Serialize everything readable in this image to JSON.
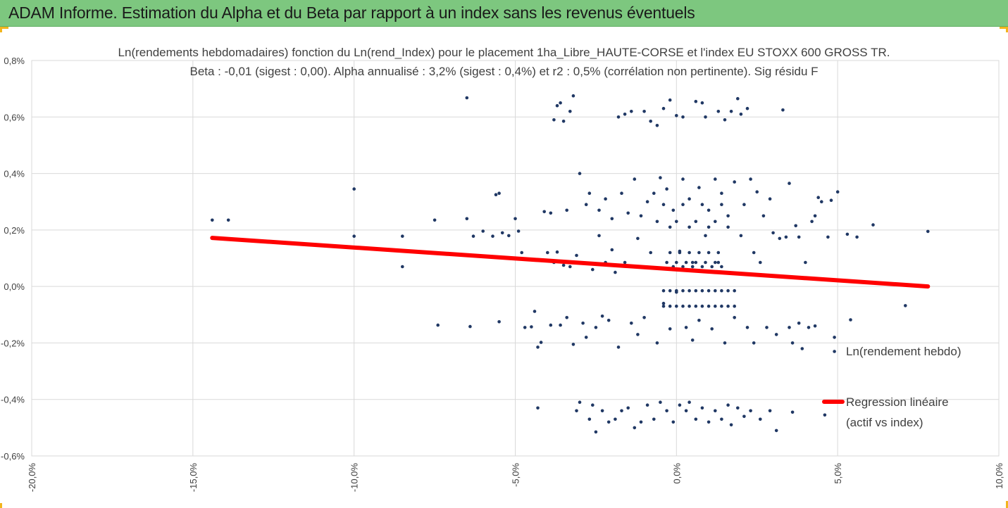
{
  "header": {
    "title": "ADAM Informe. Estimation du Alpha et du Beta par rapport à un index sans les revenus éventuels"
  },
  "colors": {
    "banner": "#7dc77f",
    "points": "#203864",
    "regression": "#ff0000",
    "grid": "#d9d9d9",
    "text": "#404040"
  },
  "chart_data": {
    "type": "scatter",
    "title_line1": "Ln(rendements hebdomadaires) fonction du Ln(rend_Index) pour le placement 1ha_Libre_HAUTE-CORSE et l'index EU STOXX 600 GROSS TR.",
    "title_line2": "Beta : -0,01 (sigest : 0,00). Alpha annualisé : 3,2% (sigest : 0,4%) et r2 : 0,5% (corrélation non pertinente). Sig résidu F",
    "xlabel": "",
    "ylabel": "",
    "xlim": [
      -0.2,
      0.1
    ],
    "ylim": [
      -0.006,
      0.008
    ],
    "x_ticks": [
      -0.2,
      -0.15,
      -0.1,
      -0.05,
      0.0,
      0.05,
      0.1
    ],
    "x_tick_labels": [
      "-20,0%",
      "-15,0%",
      "-10,0%",
      "-5,0%",
      "0,0%",
      "5,0%",
      "10,0%"
    ],
    "y_ticks": [
      -0.006,
      -0.004,
      -0.002,
      0.0,
      0.002,
      0.004,
      0.006,
      0.008
    ],
    "y_tick_labels": [
      "-0,6%",
      "-0,4%",
      "-0,2%",
      "0,0%",
      "0,2%",
      "0,4%",
      "0,6%",
      "0,8%"
    ],
    "grid": "horizontal and vertical",
    "legend_placement": "right",
    "series": [
      {
        "name": "Ln(rendement hebdo)",
        "kind": "scatter",
        "points": [
          [
            -0.144,
            0.00235
          ],
          [
            -0.139,
            0.00235
          ],
          [
            -0.1,
            0.00345
          ],
          [
            -0.1,
            0.00178
          ],
          [
            -0.085,
            0.00178
          ],
          [
            -0.085,
            0.0007
          ],
          [
            -0.075,
            0.00235
          ],
          [
            -0.074,
            -0.00137
          ],
          [
            -0.065,
            0.00668
          ],
          [
            -0.065,
            0.0024
          ],
          [
            -0.064,
            -0.00142
          ],
          [
            -0.063,
            0.00178
          ],
          [
            -0.06,
            0.00196
          ],
          [
            -0.057,
            0.00178
          ],
          [
            -0.056,
            0.00325
          ],
          [
            -0.055,
            0.0033
          ],
          [
            -0.055,
            -0.00125
          ],
          [
            -0.054,
            0.0019
          ],
          [
            -0.052,
            0.0018
          ],
          [
            -0.05,
            0.0024
          ],
          [
            -0.049,
            0.00196
          ],
          [
            -0.048,
            0.0012
          ],
          [
            -0.047,
            -0.00145
          ],
          [
            -0.045,
            -0.00143
          ],
          [
            -0.044,
            -0.00088
          ],
          [
            -0.043,
            -0.0043
          ],
          [
            -0.043,
            -0.00215
          ],
          [
            -0.042,
            -0.00198
          ],
          [
            -0.041,
            0.00265
          ],
          [
            -0.04,
            0.0012
          ],
          [
            -0.039,
            -0.00137
          ],
          [
            -0.039,
            0.0026
          ],
          [
            -0.038,
            0.0059
          ],
          [
            -0.038,
            0.00085
          ],
          [
            -0.037,
            0.0064
          ],
          [
            -0.037,
            0.00122
          ],
          [
            -0.036,
            0.0065
          ],
          [
            -0.036,
            -0.00137
          ],
          [
            -0.035,
            0.00585
          ],
          [
            -0.035,
            0.00075
          ],
          [
            -0.034,
            0.0027
          ],
          [
            -0.034,
            -0.0011
          ],
          [
            -0.033,
            0.0062
          ],
          [
            -0.033,
            0.0007
          ],
          [
            -0.032,
            0.00675
          ],
          [
            -0.032,
            -0.00205
          ],
          [
            -0.031,
            -0.0044
          ],
          [
            -0.031,
            0.0011
          ],
          [
            -0.03,
            0.004
          ],
          [
            -0.03,
            -0.0041
          ],
          [
            -0.029,
            -0.0013
          ],
          [
            -0.028,
            0.0029
          ],
          [
            -0.028,
            -0.0018
          ],
          [
            -0.027,
            -0.0047
          ],
          [
            -0.027,
            0.0033
          ],
          [
            -0.026,
            -0.0042
          ],
          [
            -0.026,
            0.0006
          ],
          [
            -0.025,
            -0.00515
          ],
          [
            -0.025,
            -0.00145
          ],
          [
            -0.024,
            0.0027
          ],
          [
            -0.024,
            0.0018
          ],
          [
            -0.023,
            -0.0044
          ],
          [
            -0.023,
            -0.00105
          ],
          [
            -0.022,
            0.0031
          ],
          [
            -0.022,
            0.00085
          ],
          [
            -0.021,
            -0.0012
          ],
          [
            -0.021,
            -0.0048
          ],
          [
            -0.02,
            0.0024
          ],
          [
            -0.02,
            0.0013
          ],
          [
            -0.019,
            -0.0047
          ],
          [
            -0.019,
            0.0005
          ],
          [
            -0.018,
            0.006
          ],
          [
            -0.018,
            -0.00215
          ],
          [
            -0.017,
            -0.0044
          ],
          [
            -0.017,
            0.0033
          ],
          [
            -0.016,
            0.0061
          ],
          [
            -0.016,
            0.00085
          ],
          [
            -0.015,
            -0.0043
          ],
          [
            -0.015,
            0.0026
          ],
          [
            -0.014,
            0.0062
          ],
          [
            -0.014,
            -0.0013
          ],
          [
            -0.013,
            -0.005
          ],
          [
            -0.013,
            0.0038
          ],
          [
            -0.012,
            0.0017
          ],
          [
            -0.012,
            -0.0017
          ],
          [
            -0.011,
            -0.0048
          ],
          [
            -0.011,
            0.0025
          ],
          [
            -0.01,
            0.0062
          ],
          [
            -0.01,
            -0.0011
          ],
          [
            -0.009,
            -0.0042
          ],
          [
            -0.009,
            0.003
          ],
          [
            -0.008,
            0.00585
          ],
          [
            -0.008,
            0.0012
          ],
          [
            -0.007,
            -0.0047
          ],
          [
            -0.007,
            0.0033
          ],
          [
            -0.006,
            0.0057
          ],
          [
            -0.006,
            -0.002
          ],
          [
            -0.005,
            -0.0041
          ],
          [
            -0.005,
            0.00385
          ],
          [
            -0.004,
            0.0063
          ],
          [
            -0.004,
            -0.0006
          ],
          [
            -0.003,
            -0.0044
          ],
          [
            -0.003,
            0.00345
          ],
          [
            -0.002,
            0.0066
          ],
          [
            -0.002,
            -0.0015
          ],
          [
            -0.001,
            -0.0048
          ],
          [
            -0.001,
            0.0027
          ],
          [
            0.0,
            0.00605
          ],
          [
            0.0,
            -0.0002
          ],
          [
            0.001,
            -0.0042
          ],
          [
            0.001,
            0.00125
          ],
          [
            0.002,
            0.006
          ],
          [
            0.002,
            0.0038
          ],
          [
            0.003,
            -0.0044
          ],
          [
            0.003,
            -0.00145
          ],
          [
            0.004,
            0.0031
          ],
          [
            0.004,
            -0.0041
          ],
          [
            0.005,
            0.00085
          ],
          [
            0.005,
            -0.0019
          ],
          [
            0.006,
            0.00655
          ],
          [
            0.006,
            -0.0047
          ],
          [
            0.007,
            0.0035
          ],
          [
            0.007,
            -0.0012
          ],
          [
            0.008,
            0.0065
          ],
          [
            0.008,
            -0.0043
          ],
          [
            0.009,
            0.006
          ],
          [
            0.009,
            0.0018
          ],
          [
            0.01,
            -0.0048
          ],
          [
            0.01,
            0.0027
          ],
          [
            0.011,
            -0.0015
          ],
          [
            0.012,
            0.0038
          ],
          [
            0.012,
            -0.0044
          ],
          [
            0.013,
            0.0062
          ],
          [
            0.013,
            0.00085
          ],
          [
            0.014,
            -0.0047
          ],
          [
            0.014,
            0.0033
          ],
          [
            0.015,
            0.0059
          ],
          [
            0.015,
            -0.002
          ],
          [
            0.016,
            -0.0042
          ],
          [
            0.016,
            0.0025
          ],
          [
            0.017,
            0.0062
          ],
          [
            0.017,
            -0.0049
          ],
          [
            0.018,
            0.0037
          ],
          [
            0.018,
            -0.0011
          ],
          [
            0.019,
            -0.0043
          ],
          [
            0.019,
            0.00665
          ],
          [
            0.02,
            0.0061
          ],
          [
            0.02,
            0.0018
          ],
          [
            0.021,
            -0.0046
          ],
          [
            0.021,
            0.0029
          ],
          [
            0.022,
            0.0063
          ],
          [
            0.022,
            -0.00145
          ],
          [
            0.023,
            -0.0044
          ],
          [
            0.023,
            0.0038
          ],
          [
            0.024,
            0.0012
          ],
          [
            0.024,
            -0.002
          ],
          [
            0.025,
            0.00335
          ],
          [
            0.026,
            -0.0047
          ],
          [
            0.026,
            0.00085
          ],
          [
            0.027,
            0.0025
          ],
          [
            0.028,
            -0.00145
          ],
          [
            0.029,
            0.0031
          ],
          [
            0.029,
            -0.0044
          ],
          [
            0.03,
            0.0019
          ],
          [
            0.031,
            -0.0051
          ],
          [
            0.031,
            -0.0017
          ],
          [
            0.032,
            0.0017
          ],
          [
            0.033,
            0.00625
          ],
          [
            0.034,
            0.00175
          ],
          [
            0.035,
            0.00365
          ],
          [
            0.035,
            -0.00145
          ],
          [
            0.036,
            -0.00445
          ],
          [
            0.036,
            -0.002
          ],
          [
            0.037,
            0.00215
          ],
          [
            0.038,
            0.00175
          ],
          [
            0.038,
            -0.0013
          ],
          [
            0.039,
            -0.0022
          ],
          [
            0.04,
            0.00085
          ],
          [
            0.041,
            -0.00145
          ],
          [
            0.042,
            0.0023
          ],
          [
            0.043,
            -0.0014
          ],
          [
            0.043,
            0.0025
          ],
          [
            0.044,
            0.00315
          ],
          [
            0.045,
            0.003
          ],
          [
            0.046,
            -0.00455
          ],
          [
            0.047,
            0.00175
          ],
          [
            0.048,
            0.00305
          ],
          [
            0.049,
            -0.0023
          ],
          [
            0.049,
            -0.0018
          ],
          [
            0.05,
            0.00335
          ],
          [
            0.053,
            0.00185
          ],
          [
            0.054,
            -0.00118
          ],
          [
            0.056,
            0.00175
          ],
          [
            0.061,
            0.00218
          ],
          [
            0.071,
            -0.00068
          ],
          [
            0.078,
            0.00195
          ],
          [
            -0.003,
            0.00085
          ],
          [
            -0.002,
            0.0012
          ],
          [
            -0.001,
            0.0007
          ],
          [
            0.0,
            0.00085
          ],
          [
            0.001,
            0.0012
          ],
          [
            0.002,
            0.0007
          ],
          [
            0.003,
            0.00085
          ],
          [
            0.004,
            0.0012
          ],
          [
            0.005,
            0.0007
          ],
          [
            0.006,
            0.00085
          ],
          [
            0.007,
            0.0012
          ],
          [
            0.008,
            0.0007
          ],
          [
            0.009,
            0.00085
          ],
          [
            0.01,
            0.0012
          ],
          [
            0.011,
            0.0007
          ],
          [
            0.012,
            0.00085
          ],
          [
            0.013,
            0.0012
          ],
          [
            0.014,
            0.0007
          ],
          [
            -0.004,
            -0.00015
          ],
          [
            -0.002,
            -0.00015
          ],
          [
            0.0,
            -0.00015
          ],
          [
            0.002,
            -0.00015
          ],
          [
            0.004,
            -0.00015
          ],
          [
            0.006,
            -0.00015
          ],
          [
            0.008,
            -0.00015
          ],
          [
            0.01,
            -0.00015
          ],
          [
            0.012,
            -0.00015
          ],
          [
            0.014,
            -0.00015
          ],
          [
            0.016,
            -0.00015
          ],
          [
            0.018,
            -0.00015
          ],
          [
            -0.004,
            -0.0007
          ],
          [
            -0.002,
            -0.0007
          ],
          [
            0.0,
            -0.0007
          ],
          [
            0.002,
            -0.0007
          ],
          [
            0.004,
            -0.0007
          ],
          [
            0.006,
            -0.0007
          ],
          [
            0.008,
            -0.0007
          ],
          [
            0.01,
            -0.0007
          ],
          [
            0.012,
            -0.0007
          ],
          [
            0.014,
            -0.0007
          ],
          [
            0.016,
            -0.0007
          ],
          [
            0.018,
            -0.0007
          ],
          [
            -0.006,
            0.0023
          ],
          [
            -0.004,
            0.0029
          ],
          [
            -0.002,
            0.0021
          ],
          [
            0.0,
            0.0023
          ],
          [
            0.002,
            0.0029
          ],
          [
            0.004,
            0.0021
          ],
          [
            0.006,
            0.0023
          ],
          [
            0.008,
            0.0029
          ],
          [
            0.01,
            0.0021
          ],
          [
            0.012,
            0.0023
          ],
          [
            0.014,
            0.0029
          ],
          [
            0.016,
            0.0021
          ]
        ]
      },
      {
        "name": "Regression linéaire (actif vs index)",
        "kind": "line",
        "x": [
          -0.144,
          0.078
        ],
        "y": [
          0.00172,
          0.0
        ]
      }
    ]
  },
  "legend": {
    "scatter_label": "Ln(rendement hebdo)",
    "line_label_1": "Regression linéaire",
    "line_label_2": "(actif vs index)"
  }
}
